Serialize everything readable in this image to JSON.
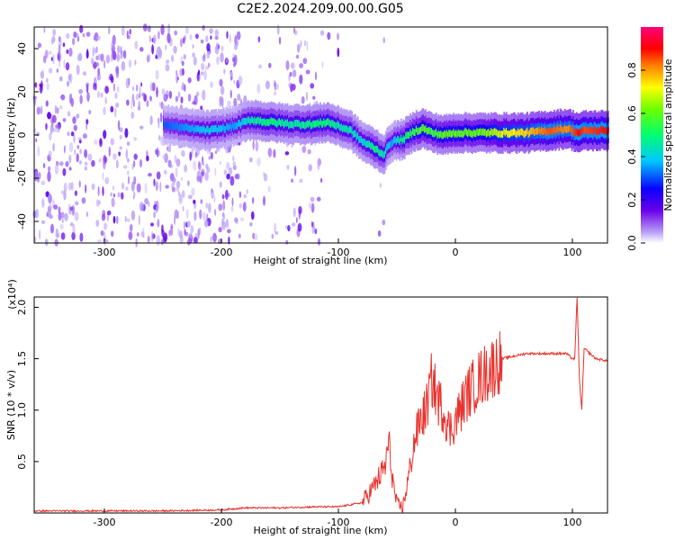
{
  "figure": {
    "title": "C2E2.2024.209.00.00.G05"
  },
  "chart_data": [
    {
      "type": "heatmap",
      "title": "C2E2.2024.209.00.00.G05",
      "xlabel": "Height of straight line (km)",
      "ylabel": "Frequency (Hz)",
      "xlim": [
        -360,
        130
      ],
      "ylim": [
        -50,
        50
      ],
      "xticks": [
        "-300",
        "-200",
        "-100",
        "0",
        "100"
      ],
      "yticks": [
        "40",
        "20",
        "0",
        "-20",
        "-40"
      ],
      "colorbar": {
        "label": "Normalized spectral amplitude",
        "range": [
          0,
          1
        ],
        "ticks": [
          "0.0",
          "0.2",
          "0.4",
          "0.6",
          "0.8"
        ],
        "colormap": "hsv-rainbow"
      },
      "ridge": {
        "x": [
          -250,
          -230,
          -210,
          -190,
          -175,
          -160,
          -140,
          -120,
          -110,
          -100,
          -90,
          -80,
          -70,
          -62,
          -55,
          -45,
          -35,
          -28,
          -20,
          -10,
          0,
          20,
          40,
          60,
          80,
          95,
          100,
          105,
          110,
          130
        ],
        "y": [
          5,
          3,
          2,
          4,
          7,
          6,
          5,
          5,
          6,
          4,
          2,
          -3,
          -6,
          -9,
          -3,
          -2,
          2,
          3,
          1,
          0,
          1,
          1,
          1,
          1,
          2,
          3,
          2,
          1,
          2,
          2
        ],
        "amplitude": [
          0.3,
          0.35,
          0.4,
          0.35,
          0.45,
          0.5,
          0.45,
          0.5,
          0.5,
          0.45,
          0.45,
          0.4,
          0.5,
          0.45,
          0.35,
          0.5,
          0.55,
          0.6,
          0.55,
          0.6,
          0.6,
          0.6,
          0.7,
          0.75,
          0.85,
          0.8,
          0.85,
          0.9,
          0.85,
          0.9
        ]
      }
    },
    {
      "type": "line",
      "xlabel": "Height of straight line (km)",
      "ylabel": "SNR (10 * v/v)",
      "yscale_label": "(x10⁴)",
      "xlim": [
        -360,
        130
      ],
      "ylim": [
        0,
        2.1
      ],
      "xticks": [
        "-300",
        "-200",
        "-100",
        "0",
        "100"
      ],
      "yticks": [
        "2.0",
        "1.5",
        "1.0",
        "0.5"
      ],
      "series": [
        {
          "color": "#e8322c",
          "x": [
            -360,
            -300,
            -250,
            -200,
            -180,
            -150,
            -120,
            -100,
            -80,
            -70,
            -60,
            -57,
            -55,
            -52,
            -50,
            -45,
            -40,
            -35,
            -30,
            -25,
            -20,
            -15,
            -10,
            -5,
            0,
            10,
            20,
            30,
            40,
            60,
            80,
            95,
            100,
            102,
            104,
            106,
            108,
            110,
            120,
            130
          ],
          "y": [
            0.02,
            0.02,
            0.02,
            0.03,
            0.05,
            0.05,
            0.06,
            0.06,
            0.1,
            0.25,
            0.45,
            0.7,
            0.45,
            0.2,
            0.08,
            0.05,
            0.35,
            0.7,
            0.9,
            1.0,
            1.3,
            1.1,
            1.0,
            0.8,
            0.9,
            1.15,
            1.3,
            1.4,
            1.5,
            1.55,
            1.55,
            1.55,
            1.5,
            1.5,
            2.1,
            1.3,
            1.0,
            1.6,
            1.5,
            1.48
          ]
        }
      ]
    }
  ]
}
